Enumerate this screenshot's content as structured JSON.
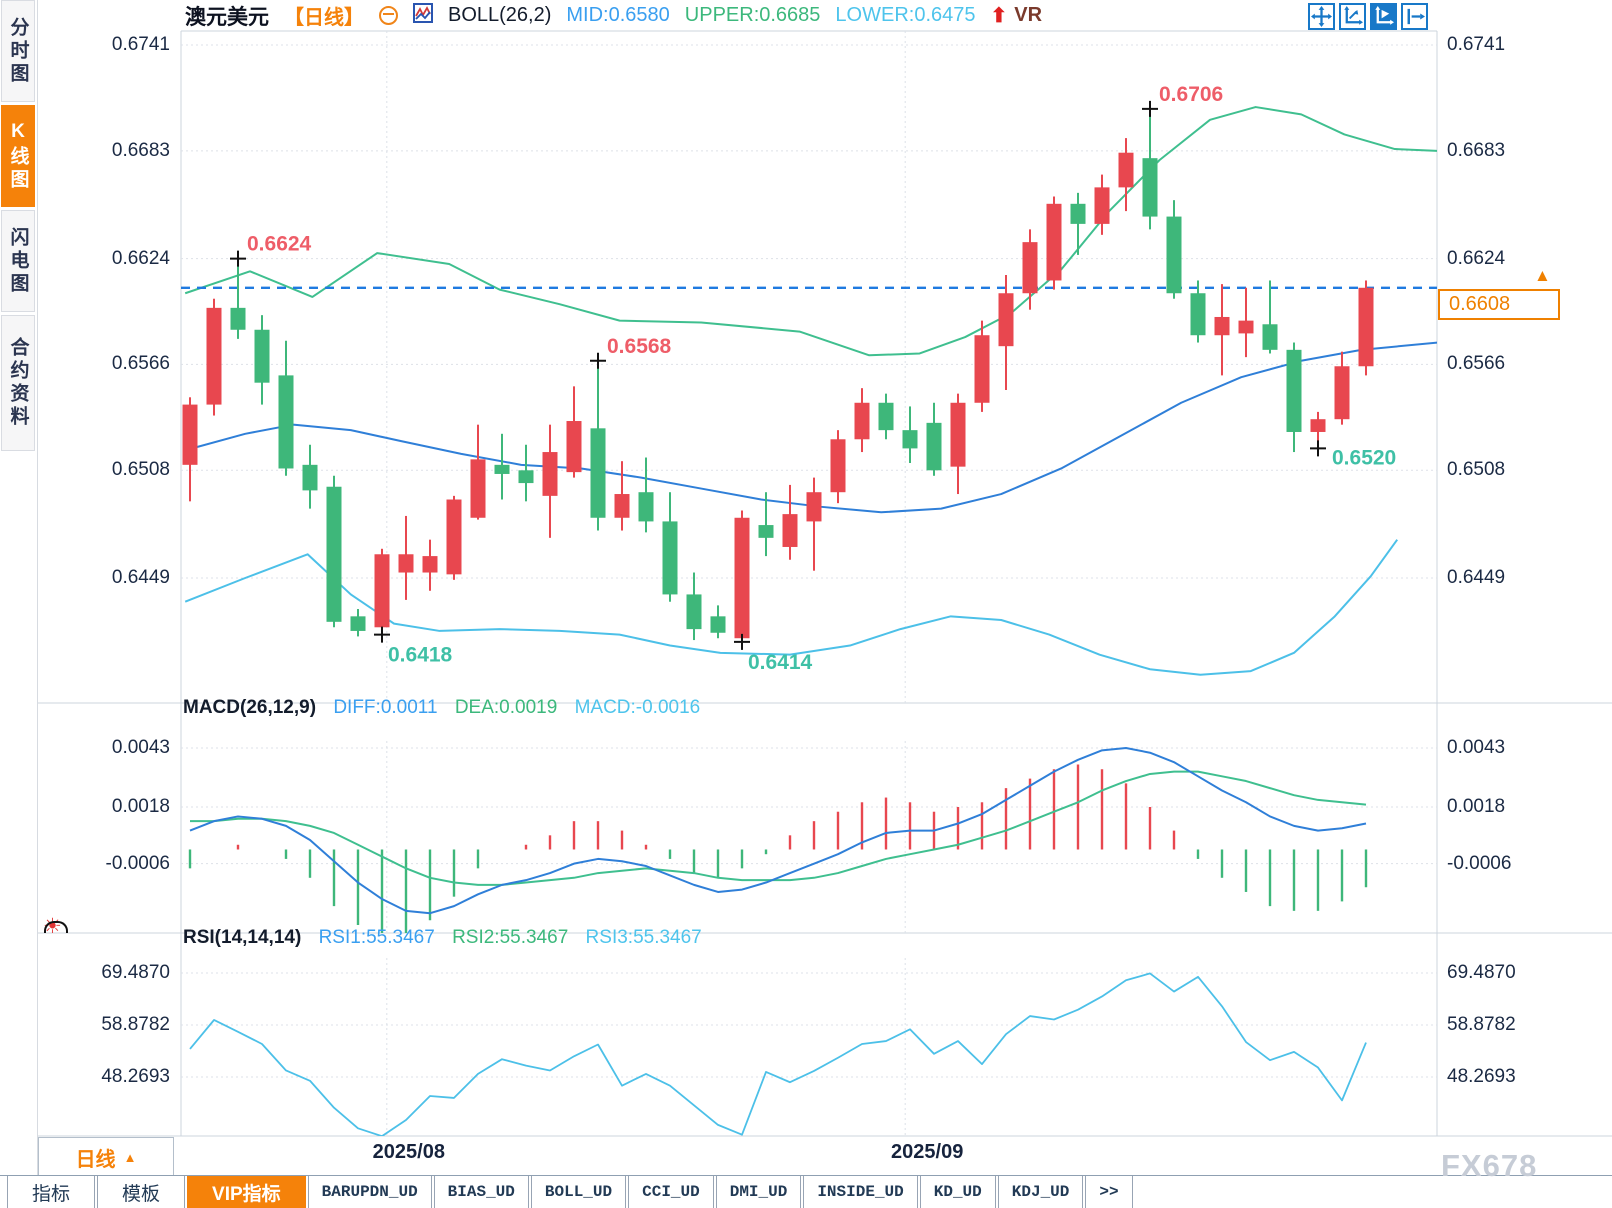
{
  "colors": {
    "bull": "#e8474f",
    "bear": "#3eb77a",
    "boll_upper": "#3fbf8f",
    "boll_mid": "#2f7fd8",
    "boll_lower": "#4cc0e8",
    "macd_diff": "#2f7fd8",
    "macd_dea": "#3fbf8f",
    "rsi_line": "#4cc0e8",
    "dashed_price_line": "#1f7ae0",
    "grid": "#dde1e8",
    "frame": "#ccd4de",
    "axis_text": "#1b2a44",
    "accent_orange": "#f5820a",
    "annotation_high": "#ee5d68",
    "annotation_low": "#3fc0a6",
    "price_marker": "#ef8000"
  },
  "sidebar": {
    "tabs": [
      {
        "label": "分时图",
        "selected": false
      },
      {
        "label": "K线图",
        "selected": true
      },
      {
        "label": "闪电图",
        "selected": false
      },
      {
        "label": "合约资料",
        "selected": false
      }
    ]
  },
  "titlebar": {
    "symbol": "澳元美元",
    "period_tag": "【日线】",
    "indicator": "BOLL(26,2)",
    "mid_label": "MID:0.6580",
    "upper_label": "UPPER:0.6685",
    "lower_label": "LOWER:0.6475",
    "arrow": "⬆",
    "vr_label": "VR"
  },
  "toolbar": {
    "icons": [
      "pan-icon",
      "axis-scale-icon",
      "auto-scale-icon",
      "shift-right-icon"
    ],
    "active_icon": "auto-scale-icon"
  },
  "macd_panel": {
    "title": "MACD(26,12,9)",
    "diff_label": "DIFF:0.0011",
    "dea_label": "DEA:0.0019",
    "macd_label": "MACD:-0.0016"
  },
  "rsi_panel": {
    "title": "RSI(14,14,14)",
    "rsi1_label": "RSI1:55.3467",
    "rsi2_label": "RSI2:55.3467",
    "rsi3_label": "RSI3:55.3467"
  },
  "price_marker": {
    "value": "0.6608",
    "arrow": "▲"
  },
  "bottom": {
    "period": "日线",
    "period_arrow": "▲",
    "tabs": [
      {
        "label": "指标",
        "mono": false,
        "selected": false
      },
      {
        "label": "模板",
        "mono": false,
        "selected": false
      },
      {
        "label": "VIP指标",
        "mono": false,
        "selected": true
      },
      {
        "label": "BARUPDN_UD",
        "mono": true,
        "selected": false
      },
      {
        "label": "BIAS_UD",
        "mono": true,
        "selected": false
      },
      {
        "label": "BOLL_UD",
        "mono": true,
        "selected": false
      },
      {
        "label": "CCI_UD",
        "mono": true,
        "selected": false
      },
      {
        "label": "DMI_UD",
        "mono": true,
        "selected": false
      },
      {
        "label": "INSIDE_UD",
        "mono": true,
        "selected": false
      },
      {
        "label": "KD_UD",
        "mono": true,
        "selected": false
      },
      {
        "label": "KDJ_UD",
        "mono": true,
        "selected": false
      },
      {
        "label": ">>",
        "mono": true,
        "selected": false
      }
    ]
  },
  "watermark": "FX678",
  "chart_data": {
    "type": "candlestick",
    "symbol": "澳元美元 (AUD/USD)",
    "timeframe": "日线 (daily)",
    "price_axis_ticks": [
      0.6741,
      0.6683,
      0.6624,
      0.6566,
      0.6508,
      0.6449
    ],
    "last_price": 0.6608,
    "candles": [
      [
        0.6511,
        0.6548,
        0.6491,
        0.6544
      ],
      [
        0.6544,
        0.6602,
        0.6538,
        0.6597
      ],
      [
        0.6597,
        0.6624,
        0.658,
        0.6585
      ],
      [
        0.6585,
        0.6593,
        0.6544,
        0.6556
      ],
      [
        0.656,
        0.6579,
        0.6505,
        0.6509
      ],
      [
        0.6511,
        0.6522,
        0.6487,
        0.6497
      ],
      [
        0.6499,
        0.6505,
        0.6422,
        0.6425
      ],
      [
        0.6428,
        0.6432,
        0.6417,
        0.642
      ],
      [
        0.6422,
        0.6465,
        0.6418,
        0.6462
      ],
      [
        0.6452,
        0.6483,
        0.6437,
        0.6462
      ],
      [
        0.6452,
        0.647,
        0.6442,
        0.6461
      ],
      [
        0.6451,
        0.6494,
        0.6448,
        0.6492
      ],
      [
        0.6482,
        0.6533,
        0.6481,
        0.6514
      ],
      [
        0.6511,
        0.6528,
        0.6492,
        0.6506
      ],
      [
        0.6508,
        0.6522,
        0.6491,
        0.6501
      ],
      [
        0.6494,
        0.6533,
        0.6471,
        0.6518
      ],
      [
        0.6507,
        0.6554,
        0.6504,
        0.6535
      ],
      [
        0.6531,
        0.6568,
        0.6475,
        0.6482
      ],
      [
        0.6482,
        0.6513,
        0.6475,
        0.6495
      ],
      [
        0.6496,
        0.6515,
        0.6474,
        0.648
      ],
      [
        0.648,
        0.6496,
        0.6436,
        0.644
      ],
      [
        0.644,
        0.6452,
        0.6415,
        0.6421
      ],
      [
        0.6428,
        0.6434,
        0.6416,
        0.6419
      ],
      [
        0.6416,
        0.6486,
        0.6414,
        0.6482
      ],
      [
        0.6478,
        0.6496,
        0.6461,
        0.6471
      ],
      [
        0.6466,
        0.65,
        0.6459,
        0.6484
      ],
      [
        0.648,
        0.6504,
        0.6453,
        0.6496
      ],
      [
        0.6496,
        0.653,
        0.649,
        0.6525
      ],
      [
        0.6525,
        0.6553,
        0.6518,
        0.6545
      ],
      [
        0.6545,
        0.655,
        0.6525,
        0.653
      ],
      [
        0.653,
        0.6543,
        0.6512,
        0.652
      ],
      [
        0.6534,
        0.6545,
        0.6505,
        0.6508
      ],
      [
        0.651,
        0.655,
        0.6495,
        0.6545
      ],
      [
        0.6545,
        0.659,
        0.654,
        0.6582
      ],
      [
        0.6576,
        0.6615,
        0.6552,
        0.6605
      ],
      [
        0.6605,
        0.664,
        0.6596,
        0.6633
      ],
      [
        0.6612,
        0.6658,
        0.6607,
        0.6654
      ],
      [
        0.6654,
        0.666,
        0.6626,
        0.6643
      ],
      [
        0.6643,
        0.667,
        0.6637,
        0.6663
      ],
      [
        0.6663,
        0.669,
        0.665,
        0.6682
      ],
      [
        0.6679,
        0.6706,
        0.664,
        0.6647
      ],
      [
        0.6647,
        0.6656,
        0.6602,
        0.6605
      ],
      [
        0.6605,
        0.6612,
        0.6578,
        0.6582
      ],
      [
        0.6582,
        0.661,
        0.656,
        0.6592
      ],
      [
        0.6583,
        0.6608,
        0.657,
        0.659
      ],
      [
        0.6588,
        0.6612,
        0.6572,
        0.6574
      ],
      [
        0.6574,
        0.6578,
        0.6518,
        0.6529
      ],
      [
        0.6529,
        0.654,
        0.652,
        0.6536
      ],
      [
        0.6536,
        0.6573,
        0.6533,
        0.6565
      ],
      [
        0.6565,
        0.6612,
        0.656,
        0.6608
      ]
    ],
    "boll": {
      "mid_value": 0.658,
      "upper_value": 0.6685,
      "lower_value": 0.6475,
      "upper_curve": [
        [
          -0.2,
          0.6605
        ],
        [
          2.5,
          0.6617
        ],
        [
          5.1,
          0.6603
        ],
        [
          7.8,
          0.6627
        ],
        [
          10.8,
          0.6621
        ],
        [
          12.9,
          0.6607
        ],
        [
          15.4,
          0.6599
        ],
        [
          17.9,
          0.659
        ],
        [
          21.3,
          0.6589
        ],
        [
          25.4,
          0.6584
        ],
        [
          28.3,
          0.6571
        ],
        [
          30.4,
          0.6572
        ],
        [
          32.3,
          0.6581
        ],
        [
          34.2,
          0.6594
        ],
        [
          36.3,
          0.6618
        ],
        [
          38.3,
          0.665
        ],
        [
          40.4,
          0.6678
        ],
        [
          42.5,
          0.67
        ],
        [
          44.4,
          0.6707
        ],
        [
          46.3,
          0.6703
        ],
        [
          48.1,
          0.6692
        ],
        [
          50.2,
          0.6684
        ],
        [
          52,
          0.6683
        ]
      ],
      "mid_curve": [
        [
          -0.2,
          0.6519
        ],
        [
          2.3,
          0.6528
        ],
        [
          4.3,
          0.6533
        ],
        [
          6.7,
          0.653
        ],
        [
          8.8,
          0.6524
        ],
        [
          11.3,
          0.6517
        ],
        [
          13.8,
          0.6511
        ],
        [
          16.3,
          0.6509
        ],
        [
          18.8,
          0.6504
        ],
        [
          21.3,
          0.6498
        ],
        [
          23.8,
          0.6492
        ],
        [
          26.3,
          0.6488
        ],
        [
          28.8,
          0.6485
        ],
        [
          31.3,
          0.6487
        ],
        [
          33.8,
          0.6495
        ],
        [
          36.3,
          0.6509
        ],
        [
          38.8,
          0.6527
        ],
        [
          41.3,
          0.6545
        ],
        [
          43.8,
          0.6559
        ],
        [
          46.3,
          0.6568
        ],
        [
          48.8,
          0.6574
        ],
        [
          52,
          0.6578
        ]
      ],
      "lower_curve": [
        [
          -0.2,
          0.6436
        ],
        [
          2.3,
          0.6449
        ],
        [
          4.9,
          0.6462
        ],
        [
          6.7,
          0.644
        ],
        [
          8.5,
          0.6424
        ],
        [
          10.4,
          0.642
        ],
        [
          12.9,
          0.6421
        ],
        [
          15.4,
          0.642
        ],
        [
          17.9,
          0.6418
        ],
        [
          20,
          0.6412
        ],
        [
          22.1,
          0.6408
        ],
        [
          25,
          0.6407
        ],
        [
          27.5,
          0.6412
        ],
        [
          29.6,
          0.6421
        ],
        [
          31.7,
          0.6428
        ],
        [
          33.8,
          0.6426
        ],
        [
          35.8,
          0.6418
        ],
        [
          37.9,
          0.6407
        ],
        [
          40,
          0.6399
        ],
        [
          42.1,
          0.6396
        ],
        [
          44.2,
          0.6398
        ],
        [
          46,
          0.6408
        ],
        [
          47.7,
          0.6428
        ],
        [
          49.2,
          0.645
        ],
        [
          50.3,
          0.647
        ]
      ]
    },
    "macd": {
      "params": "26,12,9",
      "axis_ticks": [
        0.0043,
        0.0018,
        -0.0006
      ],
      "diff_last": 0.0011,
      "dea_last": 0.0019,
      "macd_last": -0.0016,
      "diff": [
        0.0008,
        0.0012,
        0.0014,
        0.0013,
        0.001,
        0.0004,
        -0.0005,
        -0.0014,
        -0.0021,
        -0.0026,
        -0.0027,
        -0.0024,
        -0.0019,
        -0.0015,
        -0.0013,
        -0.001,
        -0.0006,
        -0.0004,
        -0.0005,
        -0.0007,
        -0.0011,
        -0.0015,
        -0.0018,
        -0.0017,
        -0.0014,
        -0.001,
        -0.0006,
        -0.0002,
        0.0003,
        0.0007,
        0.0008,
        0.0008,
        0.0011,
        0.0015,
        0.0021,
        0.0027,
        0.0033,
        0.0038,
        0.0042,
        0.0043,
        0.0041,
        0.0037,
        0.0031,
        0.0025,
        0.002,
        0.0014,
        0.001,
        0.0008,
        0.0009,
        0.0011
      ],
      "dea": [
        0.0012,
        0.0012,
        0.0013,
        0.0013,
        0.0012,
        0.001,
        0.0007,
        0.0002,
        -0.0003,
        -0.0008,
        -0.0012,
        -0.0014,
        -0.0015,
        -0.0015,
        -0.0014,
        -0.0013,
        -0.0012,
        -0.001,
        -0.0009,
        -0.0008,
        -0.0009,
        -0.001,
        -0.0012,
        -0.0013,
        -0.0013,
        -0.0013,
        -0.0012,
        -0.001,
        -0.0007,
        -0.0004,
        -0.0002,
        0.0,
        0.0002,
        0.0005,
        0.0008,
        0.0012,
        0.0016,
        0.002,
        0.0025,
        0.0029,
        0.0032,
        0.0033,
        0.0033,
        0.0031,
        0.0029,
        0.0026,
        0.0023,
        0.0021,
        0.002,
        0.0019
      ]
    },
    "rsi": {
      "params": "14,14,14",
      "axis_ticks": [
        69.487,
        58.8782,
        48.2693
      ],
      "last": 55.3467,
      "values": [
        54.0,
        59.9,
        57.5,
        55.0,
        49.6,
        47.5,
        42.0,
        37.8,
        36.2,
        39.5,
        44.4,
        44.0,
        48.9,
        51.9,
        50.6,
        49.6,
        52.5,
        54.9,
        46.5,
        48.9,
        46.5,
        42.5,
        38.5,
        36.5,
        49.3,
        47.2,
        49.5,
        52.2,
        55.0,
        55.6,
        58.0,
        53.0,
        55.6,
        50.9,
        57.0,
        60.7,
        60.0,
        62.0,
        64.7,
        68.0,
        69.4,
        65.7,
        68.7,
        62.7,
        55.4,
        51.7,
        53.4,
        50.2,
        43.5,
        55.3
      ]
    },
    "date_ticks": [
      {
        "label": "2025/08",
        "index": 8.2
      },
      {
        "label": "2025/09",
        "index": 29.8
      }
    ],
    "annotations": [
      {
        "text": "0.6624",
        "candle": 2,
        "side": "high",
        "placement": "above"
      },
      {
        "text": "0.6418",
        "candle": 8,
        "side": "low",
        "placement": "below"
      },
      {
        "text": "0.6568",
        "candle": 17,
        "side": "high",
        "placement": "above"
      },
      {
        "text": "0.6414",
        "candle": 23,
        "side": "low",
        "placement": "below"
      },
      {
        "text": "0.6706",
        "candle": 40,
        "side": "high",
        "placement": "above"
      },
      {
        "text": "0.6520",
        "candle": 47,
        "side": "low",
        "placement": "right"
      }
    ]
  }
}
